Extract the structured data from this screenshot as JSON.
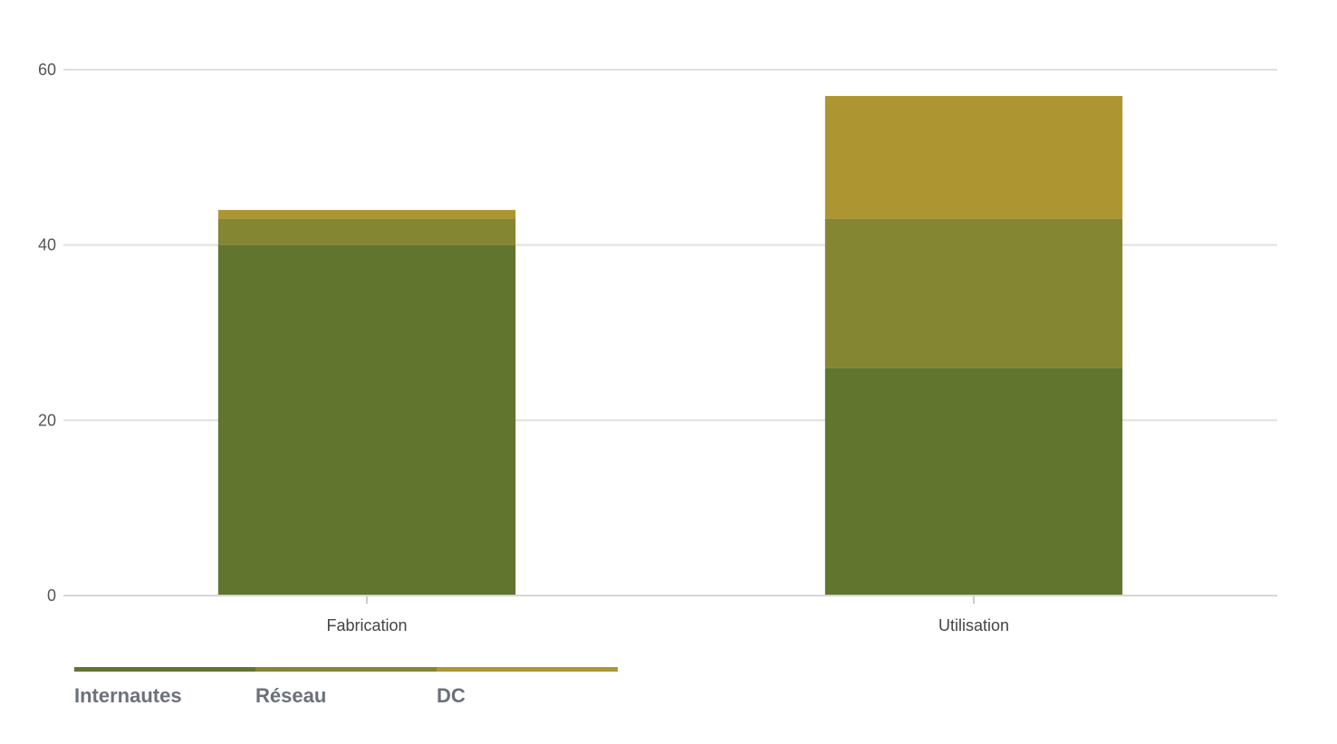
{
  "chart_data": {
    "type": "bar",
    "stacked": true,
    "categories": [
      "Fabrication",
      "Utilisation"
    ],
    "series": [
      {
        "name": "Internautes",
        "values": [
          40,
          26
        ],
        "color": "#61752e"
      },
      {
        "name": "Réseau",
        "values": [
          3,
          17
        ],
        "color": "#858631"
      },
      {
        "name": "DC",
        "values": [
          1,
          14
        ],
        "color": "#ad9632"
      }
    ],
    "yticks": [
      0,
      20,
      40,
      60
    ],
    "ylim": [
      0,
      60
    ],
    "grid": true,
    "legend_position": "bottom-left",
    "title": "",
    "xlabel": "",
    "ylabel": ""
  }
}
